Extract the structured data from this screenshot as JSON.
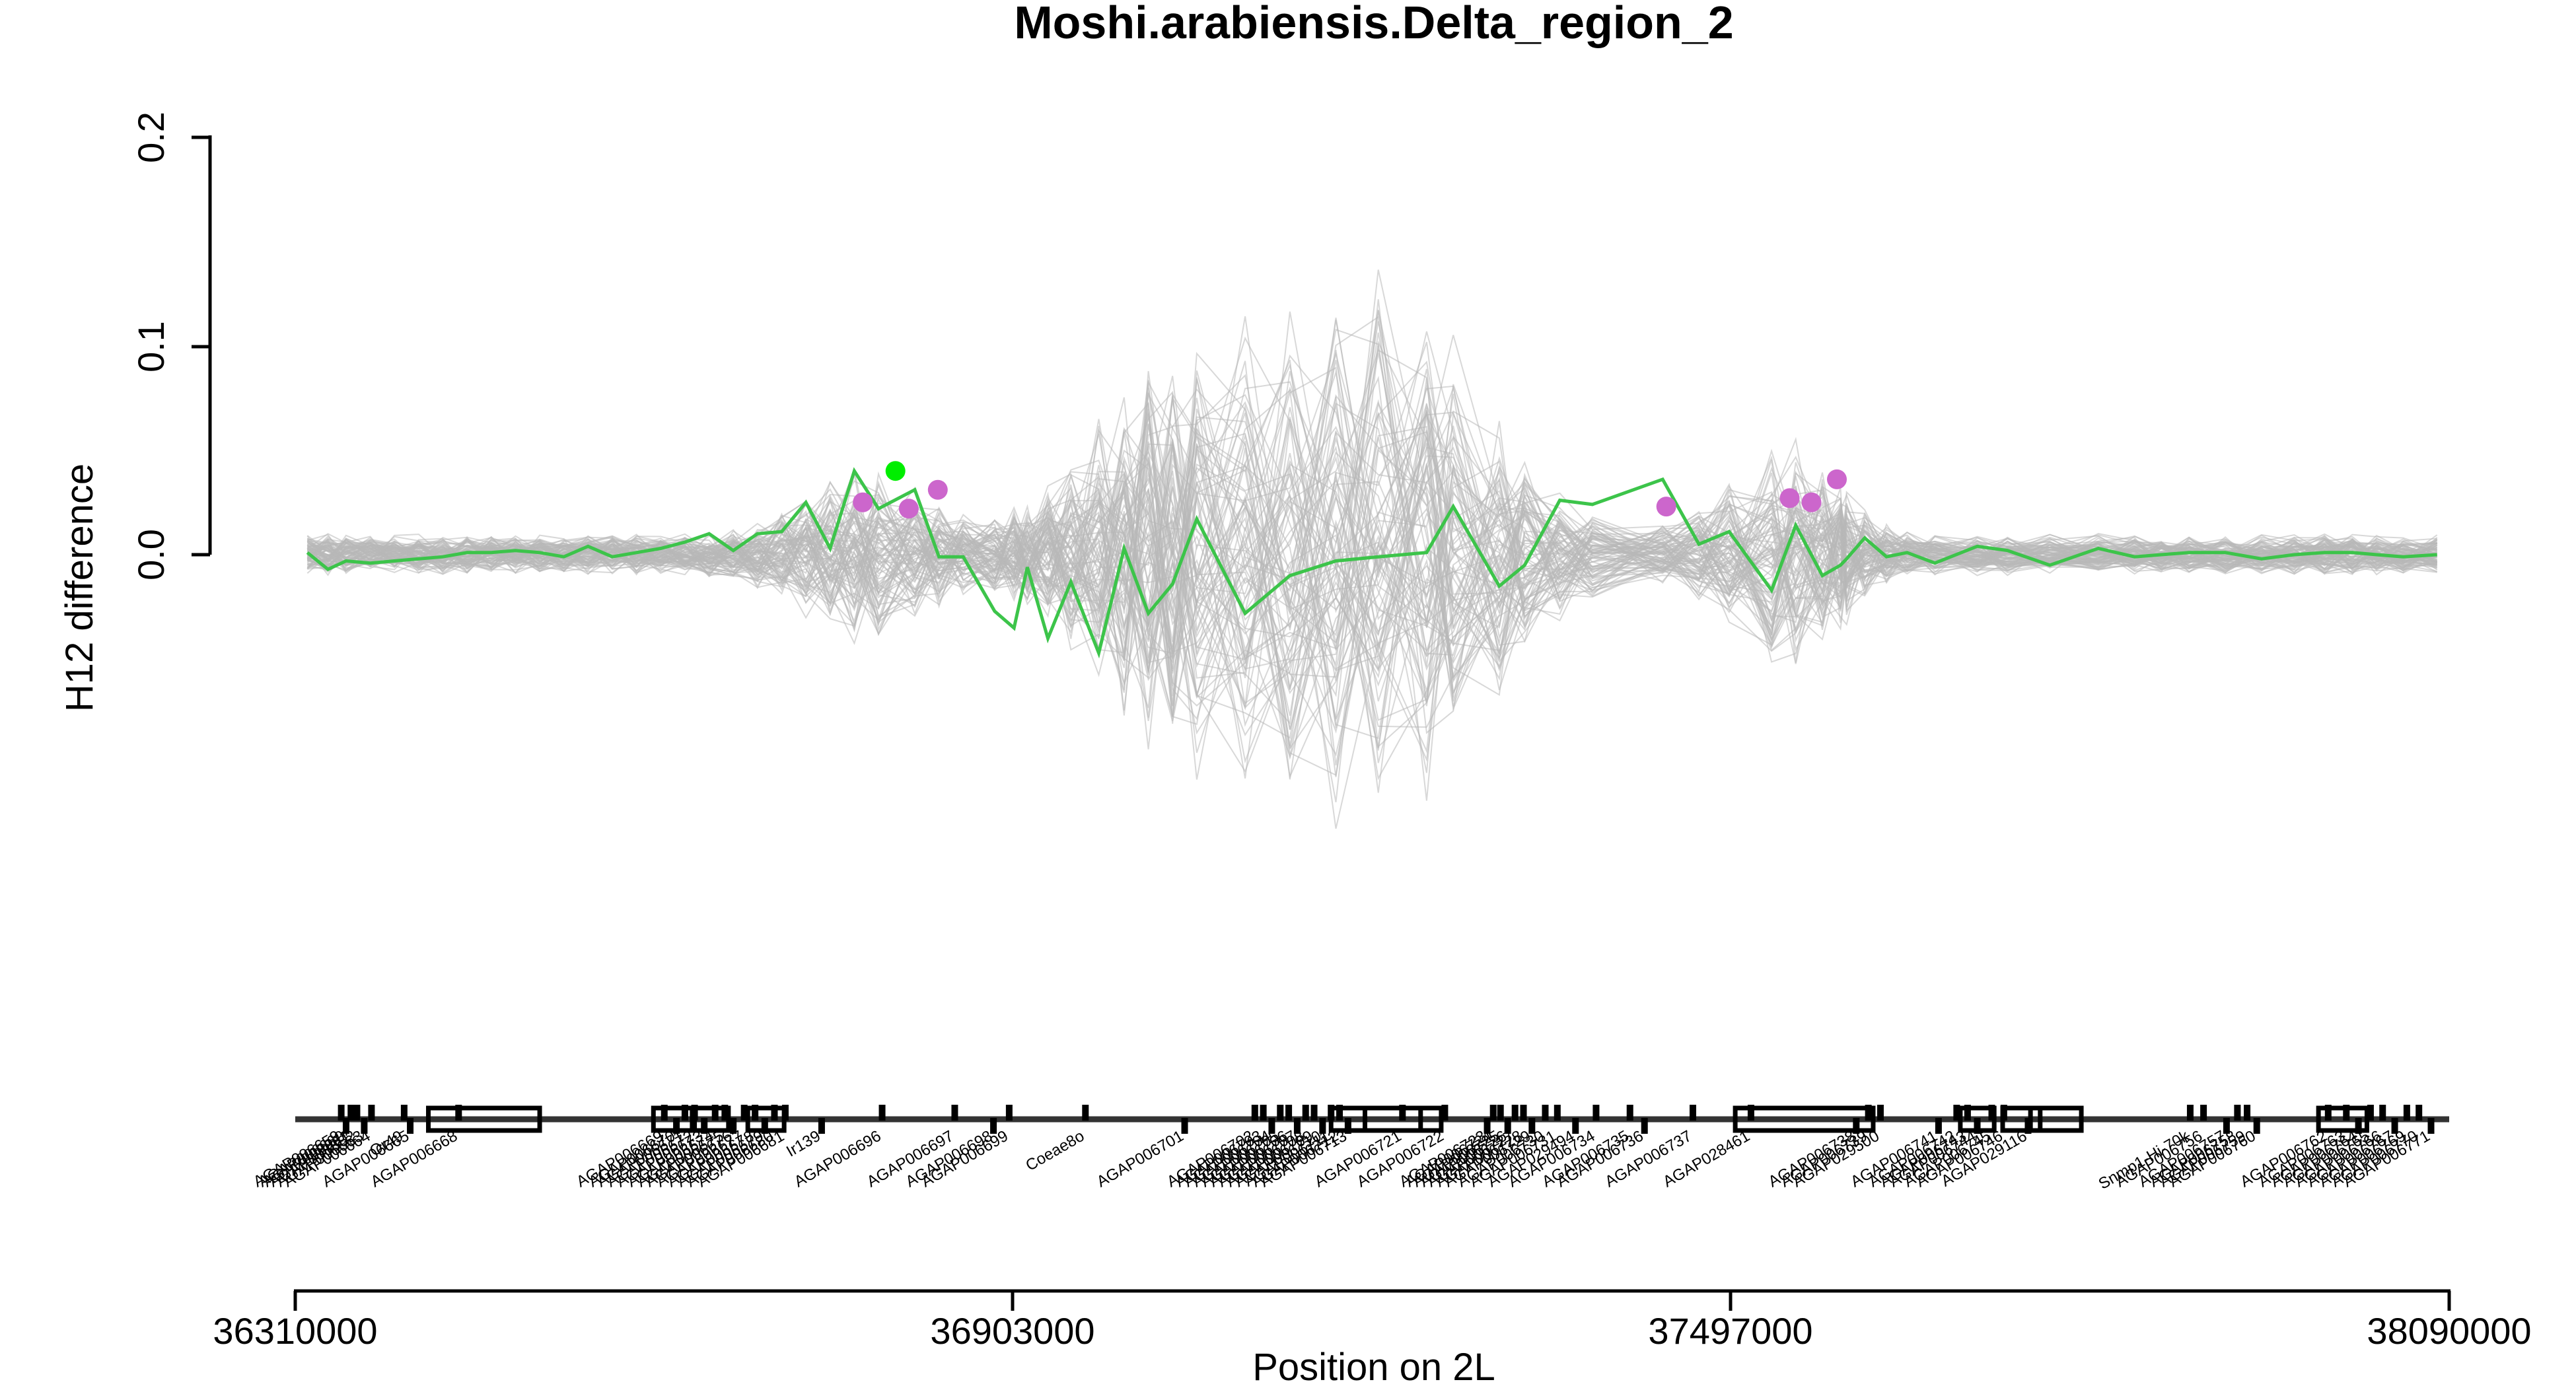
{
  "chart_data": {
    "type": "line",
    "title": "Moshi.arabiensis.Delta_region_2",
    "xlabel": "Position on 2L",
    "ylabel": "H12 difference",
    "xlim": [
      36310000,
      38090000
    ],
    "ylim": [
      -0.2,
      0.2
    ],
    "x_ticks": [
      "36310000",
      "36903000",
      "37497000",
      "38090000"
    ],
    "y_ticks": [
      "0.0",
      "0.1",
      "0.2"
    ],
    "grid": false,
    "legend": "none",
    "colors": {
      "main_line": "#3cc44a",
      "highlight_point": "#00ee00",
      "sig_points": "#cc66cc",
      "permutation_lines": "#b8b8b8",
      "gene_track": "#000000"
    },
    "series": [
      {
        "x": [
          36320000,
          36337000,
          36352000,
          36372000,
          36392000,
          36412000,
          36432000,
          36452000,
          36472000,
          36492000,
          36512000,
          36532000,
          36552000,
          36572000,
          36592000,
          36612000,
          36632000,
          36652000,
          36672000,
          36692000,
          36712000,
          36732000,
          36752000,
          36772000,
          36792000,
          36822000,
          36842000,
          36862000,
          36888000,
          36904000,
          36915000,
          36932000,
          36951000,
          36974000,
          36995000,
          37015000,
          37035000,
          37055000,
          37095000,
          37132000,
          37170000,
          37205000,
          37245000,
          37267000,
          37305000,
          37326000,
          37355000,
          37382000,
          37440000,
          37470000,
          37495000,
          37530000,
          37550000,
          37572000,
          37587000,
          37592000,
          37607000,
          37625000,
          37642000,
          37665000,
          37700000,
          37725000,
          37760000,
          37800000,
          37830000,
          37852000,
          37875000,
          37905000,
          37935000,
          37962000,
          37987000,
          38010000,
          38030000,
          38052000,
          38080000
        ],
        "y": [
          0.001,
          -0.007,
          -0.003,
          -0.004,
          -0.003,
          -0.002,
          -0.001,
          0.001,
          0.001,
          0.002,
          0.001,
          -0.001,
          0.004,
          -0.001,
          0.001,
          0.003,
          0.006,
          0.01,
          0.002,
          0.01,
          0.011,
          0.025,
          0.003,
          0.04,
          0.022,
          0.031,
          -0.001,
          -0.001,
          -0.027,
          -0.035,
          -0.006,
          -0.04,
          -0.013,
          -0.047,
          0.003,
          -0.028,
          -0.014,
          0.017,
          -0.028,
          -0.01,
          -0.003,
          -0.001,
          0.001,
          0.023,
          -0.015,
          -0.005,
          0.026,
          0.024,
          0.036,
          0.005,
          0.011,
          -0.017,
          0.014,
          -0.01,
          -0.005,
          -0.002,
          0.008,
          -0.001,
          0.001,
          -0.004,
          0.004,
          0.002,
          -0.005,
          0.003,
          -0.001,
          0.0,
          0.001,
          0.001,
          -0.002,
          0.0,
          0.001,
          0.001,
          0.0,
          -0.001,
          0.0
        ]
      }
    ],
    "significant_points": [
      {
        "x": 36779000,
        "y": 0.025
      },
      {
        "x": 36817000,
        "y": 0.022
      },
      {
        "x": 36841000,
        "y": 0.031
      },
      {
        "x": 37443000,
        "y": 0.023
      },
      {
        "x": 37545000,
        "y": 0.027
      },
      {
        "x": 37563000,
        "y": 0.025
      },
      {
        "x": 37584000,
        "y": 0.036
      }
    ],
    "highlight_point": {
      "x": 36806000,
      "y": 0.04
    },
    "gene_labels": [
      {
        "x": 36348000,
        "label": "AGAP006659"
      },
      {
        "x": 36352000,
        "label": "AGAP006660"
      },
      {
        "x": 36356000,
        "label": "AGAP006661"
      },
      {
        "x": 36361000,
        "label": "AGAP006662"
      },
      {
        "x": 36367000,
        "label": "AGAP006663"
      },
      {
        "x": 36373000,
        "label": "AGAP006664"
      },
      {
        "x": 36400000,
        "label": "Or49"
      },
      {
        "x": 36405000,
        "label": "AGAP006665"
      },
      {
        "x": 36445000,
        "label": "AGAP006668"
      },
      {
        "x": 36615000,
        "label": "AGAP006669"
      },
      {
        "x": 36625000,
        "label": "AGAP006670"
      },
      {
        "x": 36632000,
        "label": "AGAP006671"
      },
      {
        "x": 36640000,
        "label": "AGAP006672"
      },
      {
        "x": 36648000,
        "label": "AGAP006673"
      },
      {
        "x": 36657000,
        "label": "AGAP006674"
      },
      {
        "x": 36665000,
        "label": "AGAP006675"
      },
      {
        "x": 36672000,
        "label": "AGAP006676"
      },
      {
        "x": 36681000,
        "label": "AGAP006677"
      },
      {
        "x": 36690000,
        "label": "AGAP006678"
      },
      {
        "x": 36698000,
        "label": "AGAP006679"
      },
      {
        "x": 36706000,
        "label": "AGAP006680"
      },
      {
        "x": 36715000,
        "label": "AGAP006681"
      },
      {
        "x": 36745000,
        "label": "Ir139"
      },
      {
        "x": 36795000,
        "label": "AGAP006696"
      },
      {
        "x": 36855000,
        "label": "AGAP006697"
      },
      {
        "x": 36887000,
        "label": "AGAP006698"
      },
      {
        "x": 36900000,
        "label": "AGAP006699"
      },
      {
        "x": 36963000,
        "label": "Coeae8o"
      },
      {
        "x": 37045000,
        "label": "AGAP006701"
      },
      {
        "x": 37103000,
        "label": "AGAP006702"
      },
      {
        "x": 37110000,
        "label": "AGAP006703"
      },
      {
        "x": 37117000,
        "label": "AGAP006704"
      },
      {
        "x": 37124000,
        "label": "AGAP006705"
      },
      {
        "x": 37131000,
        "label": "AGAP006706"
      },
      {
        "x": 37138000,
        "label": "AGAP006707"
      },
      {
        "x": 37145000,
        "label": "AGAP006708"
      },
      {
        "x": 37152000,
        "label": "AGAP006709"
      },
      {
        "x": 37159000,
        "label": "AGAP006710"
      },
      {
        "x": 37166000,
        "label": "AGAP006711"
      },
      {
        "x": 37173000,
        "label": "AGAP006712"
      },
      {
        "x": 37180000,
        "label": "AGAP006713"
      },
      {
        "x": 37225000,
        "label": "AGAP006721"
      },
      {
        "x": 37260000,
        "label": "AGAP006722"
      },
      {
        "x": 37295000,
        "label": "AGAP006723"
      },
      {
        "x": 37300000,
        "label": "AGAP006724"
      },
      {
        "x": 37306000,
        "label": "AGAP006725"
      },
      {
        "x": 37312000,
        "label": "AGAP006726"
      },
      {
        "x": 37318000,
        "label": "AGAP006727"
      },
      {
        "x": 37325000,
        "label": "AGAP006728"
      },
      {
        "x": 37332000,
        "label": "AGAP006729"
      },
      {
        "x": 37343000,
        "label": "AGAP006730"
      },
      {
        "x": 37353000,
        "label": "AGAP006731"
      },
      {
        "x": 37368000,
        "label": "AGAP029494"
      },
      {
        "x": 37385000,
        "label": "AGAP006734"
      },
      {
        "x": 37413000,
        "label": "AGAP006735"
      },
      {
        "x": 37425000,
        "label": "AGAP006736"
      },
      {
        "x": 37465000,
        "label": "AGAP006737"
      },
      {
        "x": 37513000,
        "label": "AGAP028461"
      },
      {
        "x": 37600000,
        "label": "AGAP006738"
      },
      {
        "x": 37610000,
        "label": "AGAP006739"
      },
      {
        "x": 37620000,
        "label": "AGAP029500"
      },
      {
        "x": 37668000,
        "label": "AGAP006741"
      },
      {
        "x": 37683000,
        "label": "AGAP006742"
      },
      {
        "x": 37692000,
        "label": "AGAP006743"
      },
      {
        "x": 37700000,
        "label": "AGAP006744"
      },
      {
        "x": 37712000,
        "label": "AGAP006745"
      },
      {
        "x": 37722000,
        "label": "AGAP006746"
      },
      {
        "x": 37742000,
        "label": "AGAP029116"
      },
      {
        "x": 37876000,
        "label": "Snmp1-Hi-70k"
      },
      {
        "x": 37887000,
        "label": "AGAP006756"
      },
      {
        "x": 37906000,
        "label": "AGAP006757"
      },
      {
        "x": 37915000,
        "label": "AGAP006758"
      },
      {
        "x": 37923000,
        "label": "AGAP006759"
      },
      {
        "x": 37931000,
        "label": "AGAP006760"
      },
      {
        "x": 37990000,
        "label": "AGAP006762"
      },
      {
        "x": 38005000,
        "label": "AGAP006763"
      },
      {
        "x": 38015000,
        "label": "AGAP006764"
      },
      {
        "x": 38025000,
        "label": "AGAP006765"
      },
      {
        "x": 38035000,
        "label": "AGAP006766"
      },
      {
        "x": 38045000,
        "label": "AGAP006767"
      },
      {
        "x": 38055000,
        "label": "AGAP006769"
      },
      {
        "x": 38065000,
        "label": "AGAP006770"
      },
      {
        "x": 38075000,
        "label": "AGAP006771"
      }
    ],
    "gene_boxes": [
      {
        "start": 36420000,
        "end": 36512000
      },
      {
        "start": 36606000,
        "end": 36638000
      },
      {
        "start": 36640000,
        "end": 36668000
      },
      {
        "start": 36684000,
        "end": 36714000
      },
      {
        "start": 37166000,
        "end": 37257000
      },
      {
        "start": 37194000,
        "end": 37240000
      },
      {
        "start": 37500000,
        "end": 37614000
      },
      {
        "start": 37686000,
        "end": 37714000
      },
      {
        "start": 37721000,
        "end": 37752000
      },
      {
        "start": 37744000,
        "end": 37786000
      },
      {
        "start": 37982000,
        "end": 38022000
      }
    ]
  }
}
